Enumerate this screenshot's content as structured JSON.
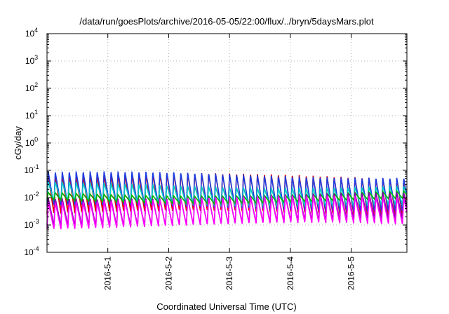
{
  "chart_data": {
    "type": "line",
    "title": "/data/run/goesPlots/archive/2016-05-05/22:00/flux/../bryn/5daysMars.plot",
    "xlabel": "Coordinated Universal Time (UTC)",
    "ylabel": "cGy/day",
    "yscale": "log",
    "ylim": [
      0.0001,
      10000
    ],
    "xlim": [
      "2016-04-30T00:00",
      "2016-05-05T22:00"
    ],
    "y_ticks": [
      {
        "base": "10",
        "exp": "-4",
        "value": 0.0001
      },
      {
        "base": "10",
        "exp": "-3",
        "value": 0.001
      },
      {
        "base": "10",
        "exp": "-2",
        "value": 0.01
      },
      {
        "base": "10",
        "exp": "-1",
        "value": 0.1
      },
      {
        "base": "10",
        "exp": "0",
        "value": 1
      },
      {
        "base": "10",
        "exp": "1",
        "value": 10
      },
      {
        "base": "10",
        "exp": "2",
        "value": 100
      },
      {
        "base": "10",
        "exp": "3",
        "value": 1000
      },
      {
        "base": "10",
        "exp": "4",
        "value": 10000
      }
    ],
    "x_ticks": [
      {
        "label": "2016-5-1",
        "value": "2016-05-01T00:00"
      },
      {
        "label": "2016-5-2",
        "value": "2016-05-02T00:00"
      },
      {
        "label": "2016-5-3",
        "value": "2016-05-03T00:00"
      },
      {
        "label": "2016-5-4",
        "value": "2016-05-04T00:00"
      },
      {
        "label": "2016-5-5",
        "value": "2016-05-05T00:00"
      }
    ],
    "grid": true,
    "oscillation_period_hours": 2.75,
    "series": [
      {
        "color": "#e60000",
        "peak": 0.06,
        "trough": 0.0025
      },
      {
        "color": "#1c3ce0",
        "peak": 0.07,
        "trough": 0.004
      },
      {
        "color": "#00c8c8",
        "peak": 0.03,
        "trough": 0.006
      },
      {
        "color": "#00b000",
        "peak": 0.015,
        "trough": 0.008
      },
      {
        "color": "#8a00b0",
        "peak": 0.012,
        "trough": 0.0012
      },
      {
        "color": "#ff00ff",
        "peak": 0.009,
        "trough": 0.0009
      }
    ]
  }
}
